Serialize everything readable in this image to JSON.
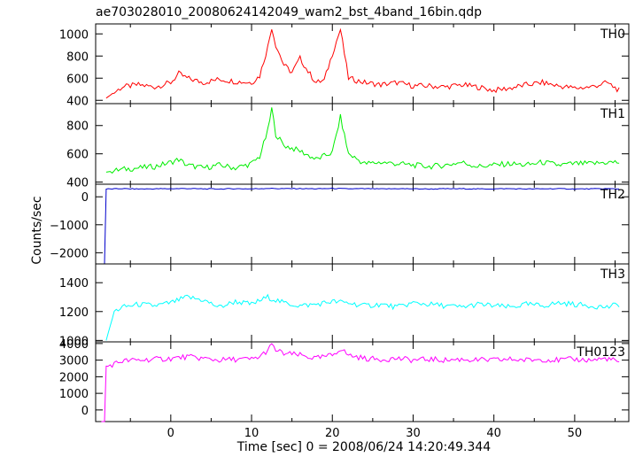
{
  "chart_data": {
    "type": "line",
    "title": "ae703028010_20080624142049_wam2_bst_4band_16bin.qdp",
    "xlabel": "Time [sec] 0 = 2008/06/24 14:20:49.344",
    "ylabel": "Counts/sec",
    "xlim": [
      -9.3,
      56.7
    ],
    "x_ticks": [
      0,
      10,
      20,
      30,
      40,
      50
    ],
    "x_tick_labels": [
      "0",
      "10",
      "20",
      "30",
      "40",
      "50"
    ],
    "grid": false,
    "panels": [
      {
        "name": "TH0",
        "color": "#ff0000",
        "ylim": [
          370,
          1090
        ],
        "y_ticks": [
          400,
          600,
          800,
          1000
        ],
        "y_tick_labels": [
          "400",
          "600",
          "800",
          "1000"
        ],
        "series": {
          "x": [
            -8,
            -6,
            -4,
            -2,
            0,
            1,
            2,
            4,
            6,
            8,
            10,
            11,
            12,
            12.5,
            13,
            14,
            15,
            16,
            17,
            18,
            19,
            20,
            21,
            22,
            24,
            26,
            28,
            30,
            32,
            34,
            36,
            38,
            40,
            42,
            44,
            46,
            48,
            50,
            52,
            54,
            55.5
          ],
          "y": [
            420,
            520,
            540,
            520,
            560,
            640,
            600,
            560,
            590,
            570,
            560,
            620,
            880,
            1060,
            900,
            720,
            650,
            780,
            660,
            560,
            580,
            820,
            1040,
            600,
            560,
            540,
            560,
            530,
            530,
            520,
            540,
            520,
            490,
            510,
            540,
            560,
            530,
            510,
            520,
            560,
            490
          ]
        }
      },
      {
        "name": "TH1",
        "color": "#00ee00",
        "ylim": [
          385,
          955
        ],
        "y_ticks": [
          400,
          600,
          800
        ],
        "y_tick_labels": [
          "400",
          "600",
          "800"
        ],
        "series": {
          "x": [
            -8,
            -6,
            -4,
            -2,
            0,
            1,
            2,
            4,
            6,
            8,
            10,
            11,
            12,
            12.5,
            13,
            14,
            16,
            18,
            20,
            21,
            22,
            24,
            26,
            28,
            30,
            32,
            34,
            36,
            38,
            40,
            42,
            44,
            46,
            48,
            50,
            52,
            54,
            55.5
          ],
          "y": [
            470,
            490,
            500,
            510,
            540,
            560,
            520,
            500,
            520,
            500,
            530,
            580,
            760,
            920,
            740,
            660,
            620,
            560,
            610,
            860,
            600,
            530,
            540,
            530,
            520,
            510,
            520,
            540,
            510,
            520,
            530,
            520,
            540,
            520,
            530,
            530,
            540,
            540
          ]
        }
      },
      {
        "name": "TH2",
        "color": "#0000cc",
        "ylim": [
          -2400,
          450
        ],
        "y_ticks": [
          0,
          -1000,
          -2000
        ],
        "y_tick_labels": [
          "0",
          "−1000",
          "−2000"
        ],
        "series": {
          "x": [
            -8.6,
            -8.2,
            -8.0,
            -6,
            -4,
            -2,
            0,
            2,
            4,
            6,
            8,
            10,
            12,
            14,
            16,
            18,
            20,
            22,
            24,
            26,
            28,
            30,
            32,
            34,
            36,
            38,
            40,
            42,
            44,
            46,
            48,
            50,
            52,
            54,
            55.5
          ],
          "y": [
            -2400,
            -2400,
            280,
            290,
            280,
            285,
            290,
            295,
            285,
            280,
            290,
            285,
            300,
            290,
            295,
            285,
            300,
            285,
            290,
            280,
            290,
            285,
            280,
            285,
            290,
            280,
            285,
            290,
            280,
            285,
            290,
            280,
            285,
            290,
            280
          ]
        }
      },
      {
        "name": "TH3",
        "color": "#00ffff",
        "ylim": [
          990,
          1530
        ],
        "y_ticks": [
          1000,
          1200,
          1400
        ],
        "y_tick_labels": [
          "1000",
          "1200",
          "1400"
        ],
        "series": {
          "x": [
            -8,
            -7,
            -6,
            -4,
            -2,
            0,
            2,
            4,
            6,
            8,
            10,
            12,
            14,
            16,
            18,
            20,
            22,
            24,
            26,
            28,
            30,
            32,
            34,
            36,
            38,
            40,
            42,
            44,
            46,
            48,
            50,
            52,
            54,
            55.5
          ],
          "y": [
            1000,
            1200,
            1230,
            1250,
            1240,
            1260,
            1300,
            1280,
            1230,
            1270,
            1250,
            1300,
            1260,
            1240,
            1250,
            1270,
            1260,
            1240,
            1250,
            1230,
            1260,
            1250,
            1240,
            1230,
            1250,
            1240,
            1230,
            1250,
            1240,
            1260,
            1250,
            1240,
            1230,
            1250
          ]
        }
      },
      {
        "name": "TH0123",
        "color": "#ff00ff",
        "ylim": [
          -700,
          4100
        ],
        "y_ticks": [
          0,
          1000,
          2000,
          3000,
          4000
        ],
        "y_tick_labels": [
          "0",
          "1000",
          "2000",
          "3000",
          "4000"
        ],
        "series": {
          "x": [
            -8.6,
            -8.2,
            -8.0,
            -6,
            -4,
            -2,
            0,
            2,
            4,
            6,
            8,
            10,
            11,
            12,
            12.5,
            13,
            14,
            16,
            18,
            20,
            21,
            22,
            24,
            26,
            28,
            30,
            32,
            34,
            36,
            38,
            40,
            42,
            44,
            46,
            48,
            50,
            52,
            54,
            55.5
          ],
          "y": [
            -700,
            -700,
            2600,
            2950,
            3000,
            3050,
            3100,
            3200,
            3100,
            3000,
            3050,
            3050,
            3200,
            3600,
            3900,
            3600,
            3400,
            3300,
            3100,
            3300,
            3700,
            3300,
            3100,
            3050,
            3100,
            3000,
            3050,
            3000,
            3050,
            3000,
            3000,
            3050,
            3000,
            3050,
            3000,
            3050,
            3000,
            3100,
            2900
          ]
        }
      }
    ]
  }
}
